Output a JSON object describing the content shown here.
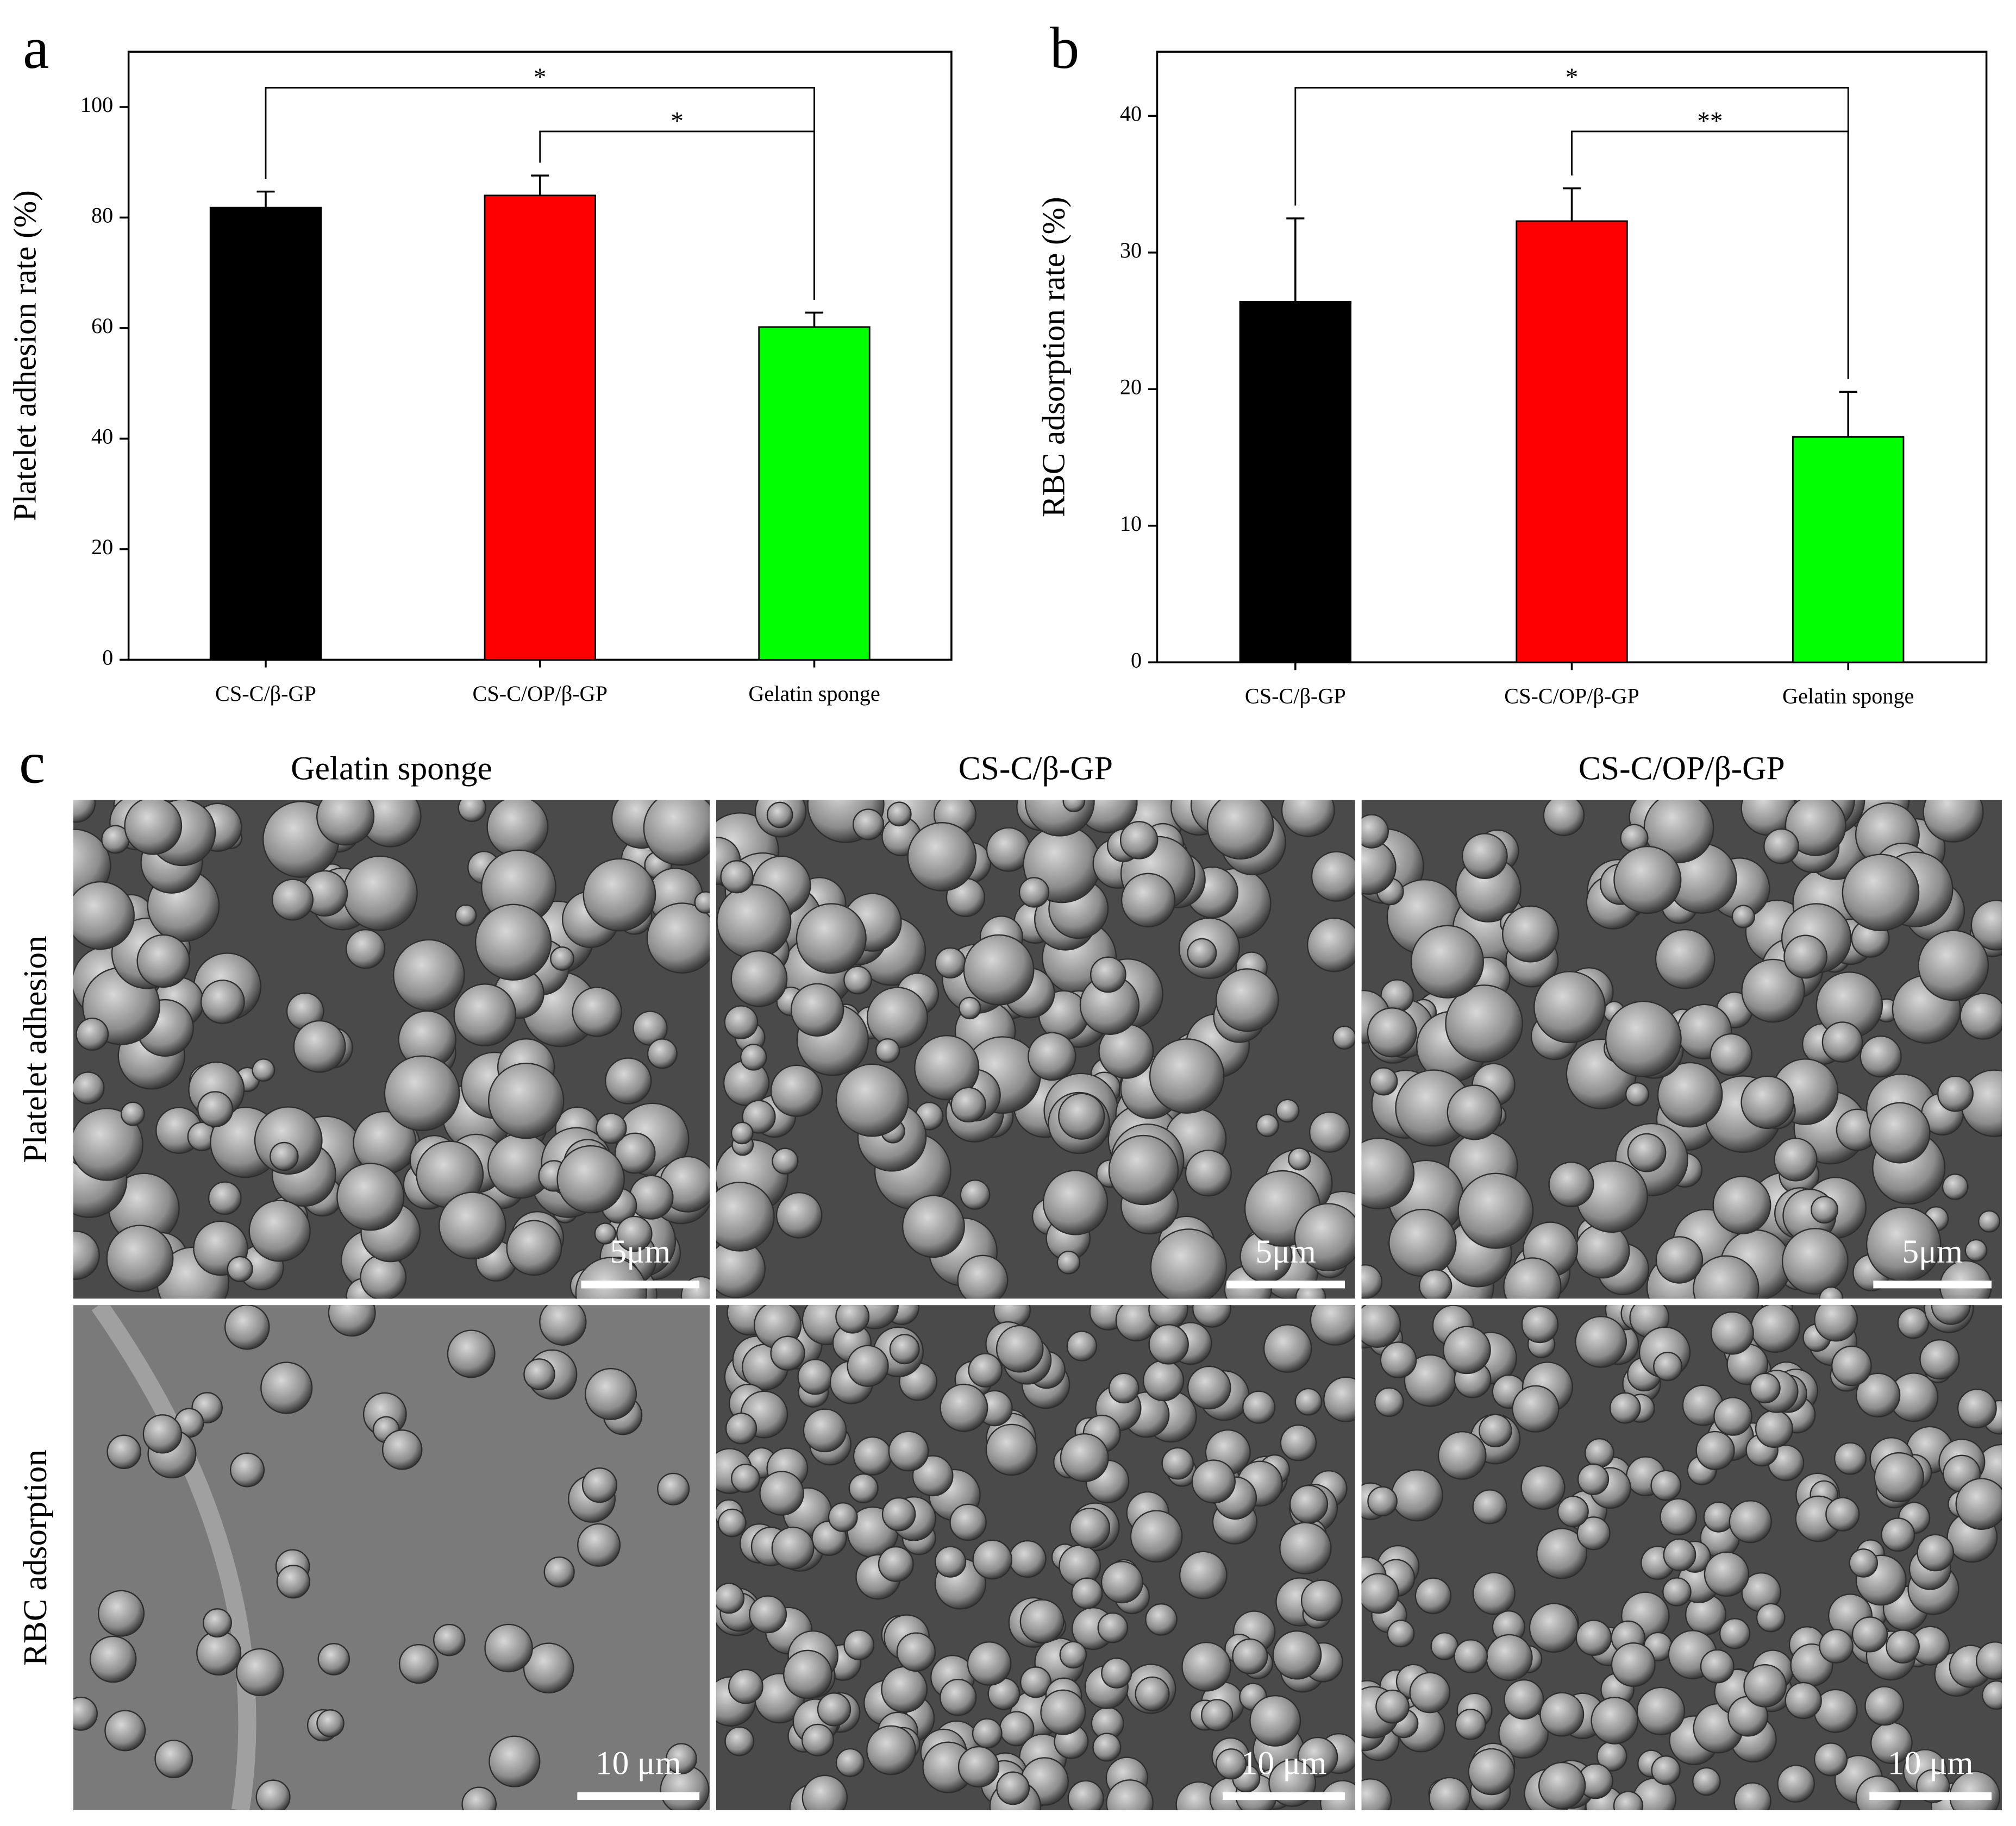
{
  "chart_data": [
    {
      "type": "bar",
      "panel_label": "a",
      "y_label": "Platelet adhesion rate (%)",
      "categories": [
        "CS-C/β-GP",
        "CS-C/OP/β-GP",
        "Gelatin sponge"
      ],
      "values": [
        81.8,
        84.0,
        60.2
      ],
      "errors": [
        2.9,
        3.6,
        2.6
      ],
      "colors": [
        "#000000",
        "#ff0000",
        "#00ff00"
      ],
      "ylim": [
        0,
        110
      ],
      "yticks": [
        0,
        20,
        40,
        60,
        80,
        100
      ],
      "annotations": [
        "*",
        "*"
      ]
    },
    {
      "type": "bar",
      "panel_label": "b",
      "y_label": "RBC adsorption rate (%)",
      "categories": [
        "CS-C/β-GP",
        "CS-C/OP/β-GP",
        "Gelatin sponge"
      ],
      "values": [
        26.4,
        32.3,
        16.5
      ],
      "errors": [
        6.1,
        2.4,
        3.3
      ],
      "colors": [
        "#000000",
        "#ff0000",
        "#00ff00"
      ],
      "ylim": [
        0,
        44.7
      ],
      "yticks": [
        0,
        10,
        20,
        30,
        40
      ],
      "annotations": [
        "*",
        "**"
      ]
    }
  ],
  "figure_c": {
    "panel_label": "c",
    "column_titles": [
      "Gelatin sponge",
      "CS-C/β-GP",
      "CS-C/OP/β-GP"
    ],
    "row_titles": [
      "Platelet adhesion",
      "RBC adsorption"
    ],
    "scale_bars": [
      [
        "5μm",
        "5μm",
        "5μm"
      ],
      [
        "10 μm",
        "10 μm",
        "10 μm"
      ]
    ]
  }
}
